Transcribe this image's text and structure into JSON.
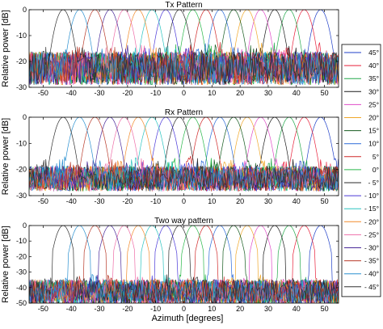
{
  "chart_data": {
    "type": "line",
    "xlabel": "Azimuth [degrees]",
    "xlim": [
      -55,
      55
    ],
    "xticks": [
      "-50",
      "-40",
      "-30",
      "-20",
      "-10",
      "0",
      "10",
      "20",
      "30",
      "40",
      "50"
    ],
    "legend_position": "right",
    "series": [
      {
        "name": "45°",
        "color": "#1f3fc8",
        "steer": 48.6
      },
      {
        "name": "40°",
        "color": "#e8203a",
        "steer": 42.8
      },
      {
        "name": "35°",
        "color": "#22a84a",
        "steer": 37.4
      },
      {
        "name": "30°",
        "color": "#1a1a1a",
        "steer": 32.3
      },
      {
        "name": "25°",
        "color": "#e04cc8",
        "steer": 27.3
      },
      {
        "name": "20°",
        "color": "#f0a82a",
        "steer": 22.5
      },
      {
        "name": "15°",
        "color": "#145a1e",
        "steer": 17.7
      },
      {
        "name": "10°",
        "color": "#2a6ad8",
        "steer": 12.8
      },
      {
        "name": "5°",
        "color": "#d02828",
        "steer": 7.9
      },
      {
        "name": "0°",
        "color": "#2ab84a",
        "steer": 3.2
      },
      {
        "name": "- 5°",
        "color": "#2a2a2a",
        "steer": -1.6
      },
      {
        "name": "- 10°",
        "color": "#4a38d8",
        "steer": -6.4
      },
      {
        "name": "- 15°",
        "color": "#2ac4c0",
        "steer": -11.3
      },
      {
        "name": "- 20°",
        "color": "#f28a2a",
        "steer": -16.2
      },
      {
        "name": "- 25°",
        "color": "#ee6ea8",
        "steer": -21.2
      },
      {
        "name": "- 30°",
        "color": "#4a2a9a",
        "steer": -26.3
      },
      {
        "name": "- 35°",
        "color": "#b83a2a",
        "steer": -31.6
      },
      {
        "name": "- 40°",
        "color": "#2a90d0",
        "steer": -37.1
      },
      {
        "name": "- 45°",
        "color": "#303030",
        "steer": -42.9
      }
    ],
    "panels": [
      {
        "title": "Tx Pattern",
        "ylabel": "Relative power [dB]",
        "ylim": [
          -30,
          0
        ],
        "yticks": [
          "0",
          "-10",
          "-20",
          "-30"
        ],
        "sidelobe_floor": -22,
        "sidelobe_spread": 8,
        "beamwidth": 3.9
      },
      {
        "title": "Rx Pattern",
        "ylabel": "Relative power [dB]",
        "ylim": [
          -30,
          0
        ],
        "yticks": [
          "0",
          "-10",
          "-20",
          "-30"
        ],
        "sidelobe_floor": -23,
        "sidelobe_spread": 6,
        "beamwidth": 4.2
      },
      {
        "title": "Two way pattern",
        "ylabel": "Relative power [dB]",
        "ylim": [
          -50,
          0
        ],
        "yticks": [
          "0",
          "-10",
          "-20",
          "-30",
          "-40",
          "-50"
        ],
        "sidelobe_floor": -42,
        "sidelobe_spread": 10,
        "beamwidth": 3.2
      }
    ]
  }
}
